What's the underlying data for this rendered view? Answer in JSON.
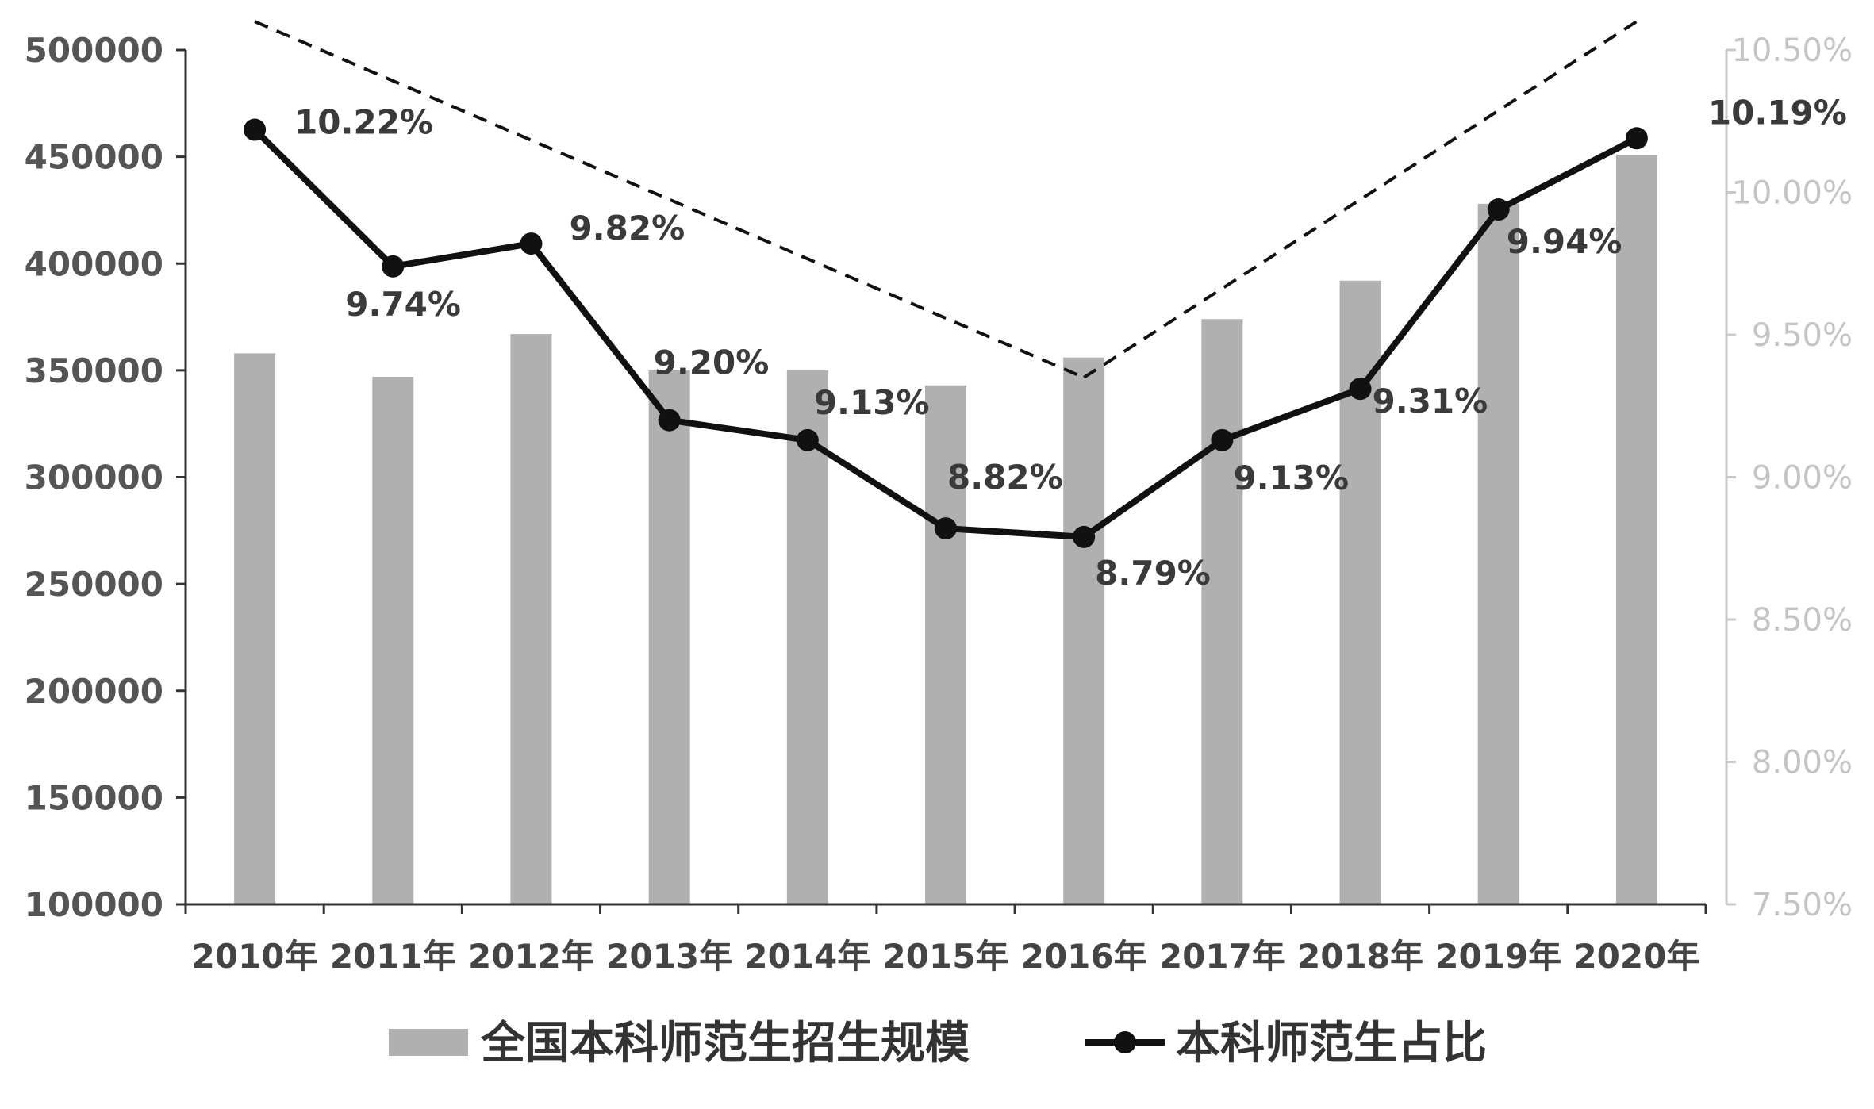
{
  "chart_data": {
    "type": "bar+line",
    "title": "",
    "categories": [
      "2010年",
      "2011年",
      "2012年",
      "2013年",
      "2014年",
      "2015年",
      "2016年",
      "2017年",
      "2018年",
      "2019年",
      "2020年"
    ],
    "series": [
      {
        "name": "全国本科师范生招生规模",
        "type": "bar",
        "axis": "left",
        "values": [
          358000,
          347000,
          367000,
          350000,
          350000,
          343000,
          356000,
          374000,
          392000,
          428000,
          451000
        ]
      },
      {
        "name": "本科师范生占比",
        "type": "line",
        "axis": "right",
        "values": [
          10.22,
          9.74,
          9.82,
          9.2,
          9.13,
          8.82,
          8.79,
          9.13,
          9.31,
          9.94,
          10.19
        ],
        "labels": [
          "10.22%",
          "9.74%",
          "9.82%",
          "9.20%",
          "9.13%",
          "8.82%",
          "8.79%",
          "9.13%",
          "9.31%",
          "9.94%",
          "10.19%"
        ]
      }
    ],
    "y_left": {
      "min": 100000,
      "max": 500000,
      "ticks": [
        "500000",
        "450000",
        "400000",
        "350000",
        "300000",
        "250000",
        "200000",
        "150000",
        "100000"
      ],
      "tick_values": [
        500000,
        450000,
        400000,
        350000,
        300000,
        250000,
        200000,
        150000,
        100000
      ]
    },
    "y_right": {
      "min": 7.5,
      "max": 10.5,
      "ticks": [
        "10.50%",
        "10.00%",
        "9.50%",
        "9.00%",
        "8.50%",
        "8.00%",
        "7.50%"
      ],
      "tick_values": [
        10.5,
        10.0,
        9.5,
        9.0,
        8.5,
        8.0,
        7.5
      ]
    },
    "trend_lines": [
      {
        "style": "dashed",
        "from": {
          "x": "2010年",
          "y": 10.6
        },
        "to": {
          "x": "2016年",
          "y": 9.35
        }
      },
      {
        "style": "dashed",
        "from": {
          "x": "2016年",
          "y": 9.35
        },
        "to": {
          "x": "2020年",
          "y": 10.6
        }
      }
    ],
    "grid": false,
    "legend_position": "bottom",
    "colors": {
      "bar": "#b0b0b0",
      "line": "#111111",
      "dashed": "#111111",
      "axis": "#333333"
    }
  }
}
